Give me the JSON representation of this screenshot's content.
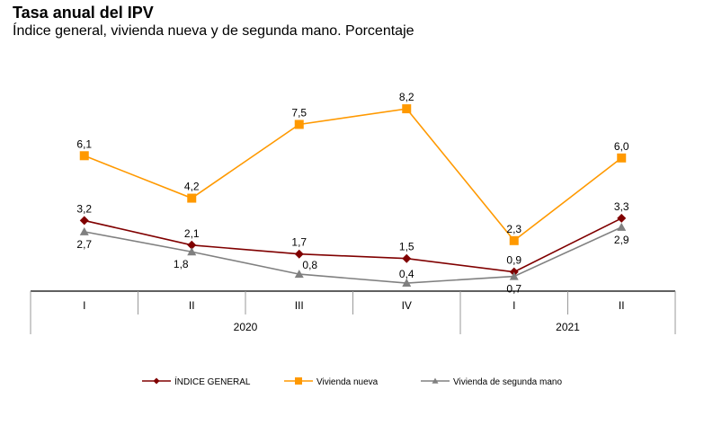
{
  "chart_data": {
    "type": "line",
    "title": "Tasa anual del IPV",
    "subtitle": "Índice general, vivienda nueva y de segunda mano. Porcentaje",
    "xlabel": "",
    "ylabel": "",
    "categories": [
      "I",
      "II",
      "III",
      "IV",
      "I",
      "II"
    ],
    "groups": [
      {
        "label": "2020",
        "span": 4
      },
      {
        "label": "2021",
        "span": 2
      }
    ],
    "ylim": [
      0,
      9
    ],
    "grid": false,
    "legend_position": "bottom",
    "series": [
      {
        "name": "ÍNDICE GENERAL",
        "color": "#800000",
        "marker": "diamond",
        "label_pos": "above",
        "values": [
          3.2,
          2.1,
          1.7,
          1.5,
          0.9,
          3.3
        ],
        "labels": [
          "3,2",
          "2,1",
          "1,7",
          "1,5",
          "0,9",
          "3,3"
        ]
      },
      {
        "name": "Vivienda nueva",
        "color": "#FF9900",
        "marker": "square",
        "label_pos": "above",
        "values": [
          6.1,
          4.2,
          7.5,
          8.2,
          2.3,
          6.0
        ],
        "labels": [
          "6,1",
          "4,2",
          "7,5",
          "8,2",
          "2,3",
          "6,0"
        ]
      },
      {
        "name": "Vivienda de segunda mano",
        "color": "#808080",
        "marker": "triangle",
        "label_pos": "mixed",
        "values": [
          2.7,
          1.8,
          0.8,
          0.4,
          0.7,
          2.9
        ],
        "labels": [
          "2,7",
          "1,8",
          "0,8",
          "0,4",
          "0,7",
          "2,9"
        ]
      }
    ]
  }
}
